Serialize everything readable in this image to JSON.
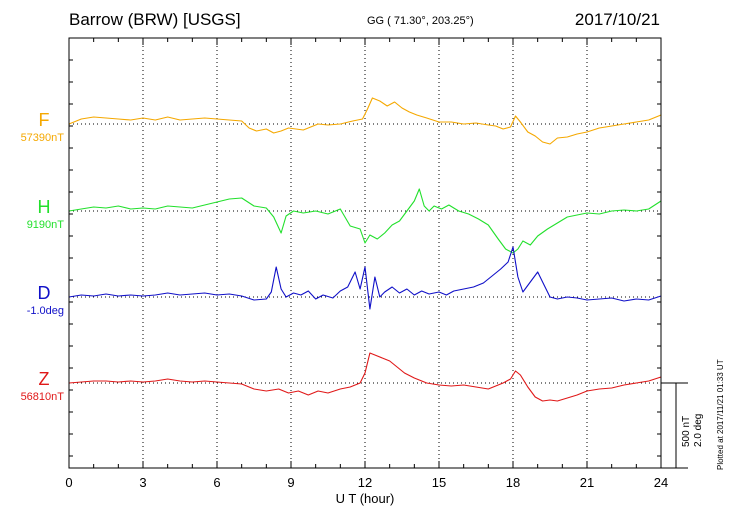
{
  "header": {
    "station": "Barrow (BRW)  [USGS]",
    "coords": "GG ( 71.30°, 203.25°)",
    "date": "2017/10/21"
  },
  "footer": {
    "plotted": "Plotted at 2017/11/21 01:33 UT",
    "scale_nt": "500 nT",
    "scale_deg": "2.0 deg"
  },
  "colors": {
    "F": "#f5a800",
    "H": "#22e02c",
    "D": "#1010c8",
    "Z": "#e01818",
    "axis": "#000000"
  },
  "chart_data": {
    "type": "line",
    "xlabel": "U T (hour)",
    "xlim": [
      0,
      24
    ],
    "xticks": [
      "0",
      "3",
      "6",
      "9",
      "12",
      "15",
      "18",
      "21",
      "24"
    ],
    "grid": true,
    "series": [
      {
        "name": "F",
        "baseline": "57390nT",
        "color": "#f5a800",
        "x": [
          0,
          0.5,
          1,
          1.5,
          2,
          2.5,
          3,
          3.5,
          4,
          4.5,
          5,
          5.5,
          6,
          6.5,
          7,
          7.3,
          7.6,
          8,
          8.3,
          8.6,
          8.9,
          9.2,
          9.5,
          9.8,
          10.1,
          10.5,
          11,
          11.5,
          11.9,
          12.1,
          12.3,
          12.6,
          12.9,
          13.2,
          13.5,
          13.8,
          14.1,
          14.5,
          15,
          15.5,
          16,
          16.5,
          17,
          17.3,
          17.6,
          17.9,
          18.1,
          18.3,
          18.6,
          18.9,
          19.2,
          19.5,
          19.8,
          20.2,
          20.6,
          21,
          21.5,
          22,
          22.5,
          23,
          23.5,
          24
        ],
        "y": [
          0,
          5,
          7,
          6,
          5,
          4,
          6,
          4,
          7,
          4,
          5,
          6,
          5,
          4,
          3,
          -4,
          -7,
          -5,
          -9,
          -7,
          -4,
          -5,
          -6,
          -3,
          0,
          -1,
          0,
          3,
          5,
          15,
          26,
          23,
          18,
          22,
          16,
          12,
          9,
          6,
          2,
          2,
          0,
          1,
          -1,
          -2,
          -5,
          -3,
          8,
          2,
          -8,
          -12,
          -18,
          -20,
          -14,
          -13,
          -10,
          -8,
          -4,
          -2,
          0,
          2,
          4,
          9
        ]
      },
      {
        "name": "H",
        "baseline": "9190nT",
        "color": "#22e02c",
        "x": [
          0,
          0.5,
          1,
          1.5,
          2,
          2.5,
          3,
          3.5,
          4,
          4.5,
          5,
          5.5,
          6,
          6.5,
          7,
          7.5,
          8,
          8.3,
          8.6,
          8.8,
          9.1,
          9.5,
          10,
          10.5,
          11,
          11.4,
          11.8,
          12,
          12.2,
          12.5,
          12.8,
          13.1,
          13.4,
          13.7,
          14,
          14.2,
          14.4,
          14.6,
          14.8,
          15.1,
          15.4,
          15.8,
          16.2,
          16.6,
          17,
          17.4,
          17.7,
          18,
          18.2,
          18.4,
          18.7,
          19,
          19.4,
          19.8,
          20.2,
          20.6,
          21,
          21.5,
          22,
          22.5,
          23,
          23.5,
          24
        ],
        "y": [
          0,
          2,
          4,
          3,
          5,
          2,
          3,
          2,
          5,
          4,
          3,
          6,
          9,
          12,
          13,
          5,
          3,
          -6,
          -22,
          -5,
          0,
          -2,
          0,
          -3,
          2,
          -15,
          -18,
          -32,
          -24,
          -28,
          -22,
          -14,
          -10,
          0,
          10,
          22,
          5,
          0,
          5,
          2,
          6,
          0,
          -3,
          -8,
          -14,
          -28,
          -38,
          -42,
          -38,
          -30,
          -34,
          -25,
          -18,
          -12,
          -6,
          -4,
          -2,
          -3,
          0,
          1,
          0,
          2,
          10
        ]
      },
      {
        "name": "D",
        "baseline": "-1.0deg",
        "color": "#1010c8",
        "x": [
          0,
          0.5,
          1,
          1.5,
          2,
          2.5,
          3,
          3.5,
          4,
          4.5,
          5,
          5.5,
          6,
          6.5,
          7,
          7.5,
          8,
          8.2,
          8.4,
          8.6,
          8.8,
          9.1,
          9.4,
          9.7,
          10,
          10.3,
          10.7,
          11,
          11.3,
          11.6,
          11.8,
          12,
          12.2,
          12.4,
          12.6,
          12.8,
          13.1,
          13.4,
          13.7,
          14,
          14.3,
          14.6,
          15,
          15.3,
          15.6,
          16,
          16.4,
          16.8,
          17.2,
          17.5,
          17.8,
          18,
          18.2,
          18.4,
          18.7,
          19,
          19.2,
          19.5,
          19.8,
          20.2,
          20.6,
          21,
          21.5,
          22,
          22.5,
          23,
          23.5,
          24
        ],
        "y": [
          0,
          2,
          1,
          3,
          1,
          2,
          1,
          2,
          4,
          2,
          3,
          4,
          2,
          3,
          1,
          -3,
          -2,
          5,
          30,
          8,
          0,
          4,
          2,
          6,
          -2,
          2,
          -1,
          6,
          10,
          25,
          8,
          30,
          -12,
          20,
          0,
          5,
          10,
          4,
          8,
          2,
          6,
          3,
          5,
          2,
          6,
          8,
          10,
          14,
          22,
          28,
          35,
          50,
          20,
          5,
          15,
          25,
          15,
          0,
          -2,
          0,
          -1,
          -3,
          -2,
          -1,
          -4,
          -2,
          -3,
          1
        ]
      },
      {
        "name": "Z",
        "baseline": "56810nT",
        "color": "#e01818",
        "x": [
          0,
          0.5,
          1,
          1.5,
          2,
          2.5,
          3,
          3.5,
          4,
          4.5,
          5,
          5.5,
          6,
          6.5,
          7,
          7.5,
          8,
          8.5,
          8.9,
          9.3,
          9.7,
          10.1,
          10.5,
          11,
          11.4,
          11.8,
          12,
          12.2,
          12.4,
          12.7,
          13,
          13.3,
          13.6,
          14,
          14.5,
          15,
          15.5,
          16,
          16.5,
          17,
          17.3,
          17.6,
          17.9,
          18.1,
          18.3,
          18.6,
          18.9,
          19.2,
          19.5,
          19.8,
          20.2,
          20.6,
          21,
          21.5,
          22,
          22.5,
          23,
          23.5,
          24
        ],
        "y": [
          0,
          1,
          2,
          2,
          1,
          2,
          1,
          2,
          4,
          2,
          1,
          2,
          1,
          0,
          -1,
          -6,
          -8,
          -6,
          -10,
          -8,
          -12,
          -8,
          -10,
          -6,
          -4,
          0,
          10,
          30,
          28,
          25,
          22,
          16,
          10,
          5,
          0,
          -2,
          -3,
          -2,
          -4,
          -6,
          -3,
          0,
          4,
          12,
          8,
          -4,
          -14,
          -18,
          -17,
          -18,
          -15,
          -12,
          -8,
          -6,
          -5,
          -2,
          0,
          2,
          6
        ]
      }
    ]
  }
}
